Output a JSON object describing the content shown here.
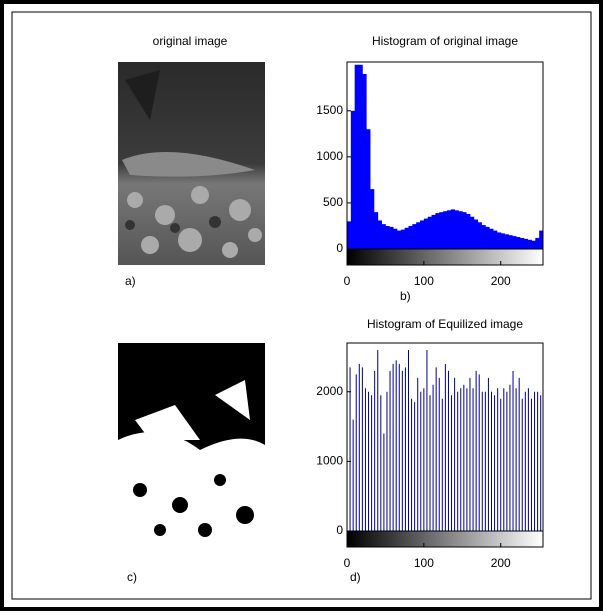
{
  "images": [
    {
      "title": "original image",
      "label": "a)"
    },
    {
      "label": "c)"
    }
  ],
  "chart_data": [
    {
      "type": "histogram",
      "title": "Histogram of original image",
      "label": "b)",
      "color": "#0000ff",
      "bins": [
        0,
        5,
        10,
        15,
        20,
        25,
        30,
        35,
        40,
        45,
        50,
        55,
        60,
        65,
        70,
        75,
        80,
        85,
        90,
        95,
        100,
        105,
        110,
        115,
        120,
        125,
        130,
        135,
        140,
        145,
        150,
        155,
        160,
        165,
        170,
        175,
        180,
        185,
        190,
        195,
        200,
        205,
        210,
        215,
        220,
        225,
        230,
        235,
        240,
        245,
        250,
        255
      ],
      "counts": [
        300,
        1500,
        2000,
        2000,
        1900,
        1300,
        650,
        400,
        310,
        270,
        250,
        240,
        220,
        200,
        210,
        230,
        250,
        270,
        290,
        310,
        330,
        350,
        370,
        390,
        400,
        410,
        420,
        430,
        420,
        410,
        400,
        380,
        350,
        320,
        290,
        260,
        240,
        220,
        200,
        180,
        170,
        160,
        150,
        140,
        130,
        120,
        110,
        100,
        90,
        120,
        200
      ],
      "xlim": [
        0,
        255
      ],
      "xticks": [
        0,
        100,
        200
      ],
      "ylim": [
        0,
        2030
      ],
      "yticks": [
        0,
        500,
        1000,
        1500
      ]
    },
    {
      "type": "stem",
      "title": "Histogram of Equilized image",
      "label": "d)",
      "color": "#00008b",
      "x": [
        0,
        4,
        8,
        12,
        16,
        20,
        24,
        28,
        32,
        36,
        40,
        44,
        48,
        52,
        56,
        60,
        64,
        68,
        72,
        76,
        80,
        84,
        88,
        92,
        96,
        100,
        104,
        108,
        112,
        116,
        120,
        124,
        128,
        132,
        136,
        140,
        144,
        148,
        152,
        156,
        160,
        164,
        168,
        172,
        176,
        180,
        184,
        188,
        192,
        196,
        200,
        204,
        208,
        212,
        216,
        220,
        224,
        228,
        232,
        236,
        240,
        244,
        248,
        252
      ],
      "values": [
        1750,
        2350,
        1600,
        2250,
        2400,
        2350,
        2050,
        2000,
        1950,
        2300,
        2600,
        1950,
        1400,
        2000,
        2300,
        2400,
        2450,
        2400,
        2300,
        2350,
        2600,
        1900,
        1850,
        2200,
        2000,
        2050,
        2600,
        1950,
        2100,
        2350,
        2200,
        1900,
        2400,
        2300,
        1950,
        2200,
        2000,
        2050,
        2100,
        2050,
        2200,
        2050,
        2300,
        2250,
        2000,
        2000,
        2200,
        2000,
        1950,
        2050,
        1900,
        2050,
        2000,
        2100,
        2300,
        2050,
        2200,
        1900,
        2000,
        2050,
        1900,
        2000,
        2000,
        1950
      ],
      "xlim": [
        0,
        255
      ],
      "xticks": [
        0,
        100,
        200
      ],
      "ylim": [
        0,
        2700
      ],
      "yticks": [
        0,
        1000,
        2000
      ]
    }
  ]
}
